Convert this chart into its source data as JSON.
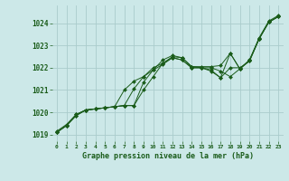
{
  "xlabel": "Graphe pression niveau de la mer (hPa)",
  "bg_color": "#cce8e8",
  "grid_color": "#aacccc",
  "line_color": "#1a5c1a",
  "marker_color": "#1a5c1a",
  "ylim": [
    1018.7,
    1024.8
  ],
  "xlim": [
    -0.5,
    23.5
  ],
  "yticks": [
    1019,
    1020,
    1021,
    1022,
    1023,
    1024
  ],
  "xticks": [
    0,
    1,
    2,
    3,
    4,
    5,
    6,
    7,
    8,
    9,
    10,
    11,
    12,
    13,
    14,
    15,
    16,
    17,
    18,
    19,
    20,
    21,
    22,
    23
  ],
  "series": [
    [
      1019.1,
      1019.4,
      1019.9,
      1020.1,
      1020.15,
      1020.2,
      1020.25,
      1021.0,
      1021.4,
      1021.6,
      1021.9,
      1022.35,
      1022.55,
      1022.45,
      1022.05,
      1022.0,
      1021.9,
      1021.55,
      1022.65,
      1021.95,
      1022.3,
      1023.3,
      1024.05,
      1024.3
    ],
    [
      1019.1,
      1019.4,
      1019.85,
      1020.1,
      1020.15,
      1020.2,
      1020.25,
      1020.3,
      1021.05,
      1021.6,
      1022.0,
      1022.2,
      1022.5,
      1022.45,
      1022.05,
      1022.05,
      1022.05,
      1022.1,
      1022.65,
      1021.95,
      1022.35,
      1023.35,
      1024.1,
      1024.35
    ],
    [
      1019.1,
      1019.4,
      1019.85,
      1020.1,
      1020.15,
      1020.2,
      1020.25,
      1020.3,
      1020.3,
      1021.35,
      1021.9,
      1022.15,
      1022.45,
      1022.35,
      1022.0,
      1022.0,
      1022.0,
      1021.85,
      1021.6,
      1021.95,
      1022.35,
      1023.3,
      1024.05,
      1024.3
    ],
    [
      1019.15,
      1019.45,
      1019.9,
      1020.1,
      1020.15,
      1020.2,
      1020.25,
      1020.3,
      1020.3,
      1021.0,
      1021.6,
      1022.2,
      1022.45,
      1022.35,
      1022.0,
      1022.0,
      1021.85,
      1021.55,
      1022.0,
      1022.0,
      1022.3,
      1023.3,
      1024.05,
      1024.3
    ]
  ]
}
